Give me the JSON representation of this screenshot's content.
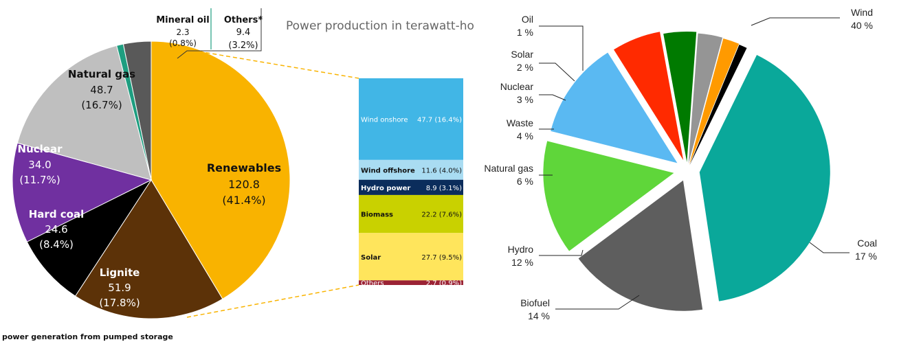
{
  "chart_data": [
    {
      "type": "pie",
      "title": "Power production in terawatt-ho",
      "unit": "TWh",
      "slices": [
        {
          "name": "Renewables",
          "value": 120.8,
          "pct": "(41.4%)",
          "color": "#F9B300"
        },
        {
          "name": "Lignite",
          "value": 51.9,
          "pct": "(17.8%)",
          "color": "#5C3208"
        },
        {
          "name": "Hard coal",
          "value": 24.6,
          "pct": "(8.4%)",
          "color": "#000000"
        },
        {
          "name": "Nuclear",
          "value": 34.0,
          "pct": "(11.7%)",
          "color": "#7030A0"
        },
        {
          "name": "Natural gas",
          "value": 48.7,
          "pct": "(16.7%)",
          "color": "#BFBFBF"
        },
        {
          "name": "Mineral oil",
          "value": 2.3,
          "pct": "(0.8%)",
          "color": "#1E9E80"
        },
        {
          "name": "Others*",
          "value": 9.4,
          "pct": "(3.2%)",
          "color": "#595959"
        }
      ],
      "labels": {
        "renewables": {
          "name": "Renewables",
          "value": "120.8",
          "pct": "(41.4%)"
        },
        "lignite": {
          "name": "Lignite",
          "value": "51.9",
          "pct": "(17.8%)"
        },
        "hard_coal": {
          "name": "Hard coal",
          "value": "24.6",
          "pct": "(8.4%)"
        },
        "nuclear": {
          "name": "Nuclear",
          "value": "34.0",
          "pct": "(11.7%)"
        },
        "natural_gas": {
          "name": "Natural gas",
          "value": "48.7",
          "pct": "(16.7%)"
        },
        "mineral_oil": {
          "name": "Mineral oil",
          "value": "2.3",
          "pct": "(0.8%)"
        },
        "others": {
          "name": "Others*",
          "value": "9.4",
          "pct": "(3.2%)"
        }
      },
      "breakdown": {
        "of": "Renewables",
        "segments": [
          {
            "name": "Wind onshore",
            "value": 47.7,
            "label": "Wind onshore",
            "value_text": "47.7 (16.4%)",
            "color": "#41B6E6"
          },
          {
            "name": "Wind offshore",
            "value": 11.6,
            "label": "Wind offshore",
            "value_text": "11.6 (4.0%)",
            "color": "#A9DCF2"
          },
          {
            "name": "Hydro power",
            "value": 8.9,
            "label": "Hydro power",
            "value_text": "8.9 (3.1%)",
            "color": "#0B2D5C"
          },
          {
            "name": "Biomass",
            "value": 22.2,
            "label": "Biomass",
            "value_text": "22.2 (7.6%)",
            "color": "#C9D100"
          },
          {
            "name": "Solar",
            "value": 27.7,
            "label": "Solar",
            "value_text": "27.7 (9.5%)",
            "color": "#FFE55C"
          },
          {
            "name": "Others",
            "value": 2.7,
            "label": "Others",
            "value_text": "2.7 (0.9%)",
            "color": "#9B2335"
          }
        ]
      },
      "footnote": "power generation from pumped storage"
    },
    {
      "type": "pie",
      "title": "",
      "slices": [
        {
          "name": "Wind",
          "value": 40,
          "label": "40 %",
          "color": "#0AA89A"
        },
        {
          "name": "Coal",
          "value": 17,
          "label": "17 %",
          "color": "#5E5E5E"
        },
        {
          "name": "Biofuel",
          "value": 14,
          "label": "14 %",
          "color": "#5FD63A"
        },
        {
          "name": "Hydro",
          "value": 12,
          "label": "12 %",
          "color": "#5AB9F2"
        },
        {
          "name": "Natural gas",
          "value": 6,
          "label": "6 %",
          "color": "#FF2A00"
        },
        {
          "name": "Waste",
          "value": 4,
          "label": "4 %",
          "color": "#007A00"
        },
        {
          "name": "Nuclear",
          "value": 3,
          "label": "3 %",
          "color": "#959595"
        },
        {
          "name": "Solar",
          "value": 2,
          "label": "2 %",
          "color": "#FF9A00"
        },
        {
          "name": "Oil",
          "value": 1,
          "label": "1 %",
          "color": "#000000"
        }
      ]
    }
  ]
}
